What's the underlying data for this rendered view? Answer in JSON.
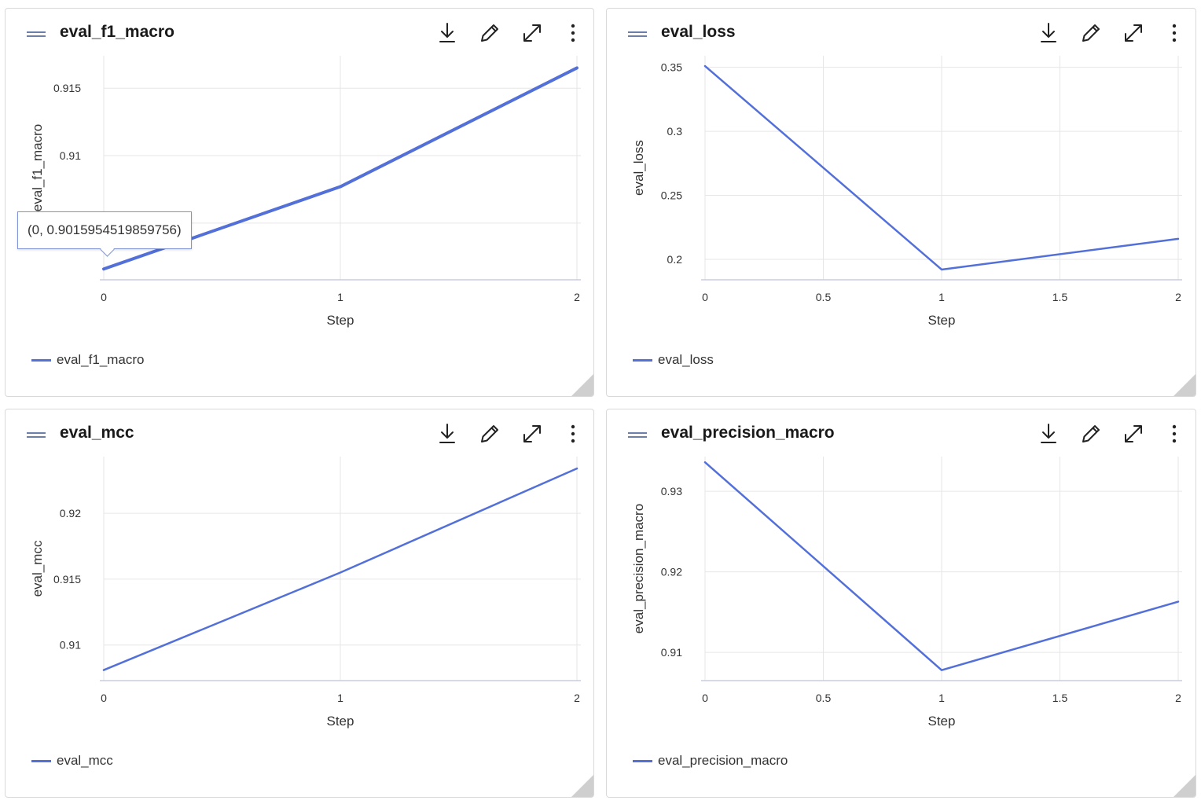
{
  "colors": {
    "series": "#5370d9",
    "grid": "#e6e6e6",
    "axis": "#c8cbe6",
    "text": "#333333"
  },
  "icons": [
    "drag-handle-icon",
    "download-icon",
    "edit-icon",
    "expand-icon",
    "more-vertical-icon"
  ],
  "panels": [
    {
      "title": "eval_f1_macro",
      "legend": "eval_f1_macro",
      "tooltip": "(0, 0.9015954519859756)",
      "chart_data": {
        "type": "line",
        "x": [
          0,
          1,
          2
        ],
        "series": [
          {
            "name": "eval_f1_macro",
            "values": [
              0.9016,
              0.9077,
              0.9165
            ]
          }
        ],
        "xlabel": "Step",
        "ylabel": "eval_f1_macro",
        "xticks": [
          "0",
          "1",
          "2"
        ],
        "yticks": [
          "0.905",
          "0.91",
          "0.915"
        ],
        "xlim": [
          0,
          2
        ],
        "ylim": [
          0.9008,
          0.9174
        ],
        "grid": true,
        "legend_position": "bottom-left"
      }
    },
    {
      "title": "eval_loss",
      "legend": "eval_loss",
      "chart_data": {
        "type": "line",
        "x": [
          0,
          1,
          2
        ],
        "series": [
          {
            "name": "eval_loss",
            "values": [
              0.351,
              0.192,
              0.216
            ]
          }
        ],
        "xlabel": "Step",
        "ylabel": "eval_loss",
        "xticks": [
          "0",
          "0.5",
          "1",
          "1.5",
          "2"
        ],
        "yticks": [
          "0.2",
          "0.25",
          "0.3",
          "0.35"
        ],
        "xlim": [
          0,
          2
        ],
        "ylim": [
          0.184,
          0.359
        ],
        "grid": true,
        "legend_position": "bottom-left"
      }
    },
    {
      "title": "eval_mcc",
      "legend": "eval_mcc",
      "chart_data": {
        "type": "line",
        "x": [
          0,
          1,
          2
        ],
        "series": [
          {
            "name": "eval_mcc",
            "values": [
              0.9081,
              0.9155,
              0.9234
            ]
          }
        ],
        "xlabel": "Step",
        "ylabel": "eval_mcc",
        "xticks": [
          "0",
          "1",
          "2"
        ],
        "yticks": [
          "0.91",
          "0.915",
          "0.92"
        ],
        "xlim": [
          0,
          2
        ],
        "ylim": [
          0.9073,
          0.9243
        ],
        "grid": true,
        "legend_position": "bottom-left"
      }
    },
    {
      "title": "eval_precision_macro",
      "legend": "eval_precision_macro",
      "chart_data": {
        "type": "line",
        "x": [
          0,
          1,
          2
        ],
        "series": [
          {
            "name": "eval_precision_macro",
            "values": [
              0.9336,
              0.9078,
              0.9163
            ]
          }
        ],
        "xlabel": "Step",
        "ylabel": "eval_precision_macro",
        "xticks": [
          "0",
          "0.5",
          "1",
          "1.5",
          "2"
        ],
        "yticks": [
          "0.91",
          "0.92",
          "0.93"
        ],
        "xlim": [
          0,
          2
        ],
        "ylim": [
          0.9065,
          0.9343
        ],
        "grid": true,
        "legend_position": "bottom-left"
      }
    }
  ]
}
